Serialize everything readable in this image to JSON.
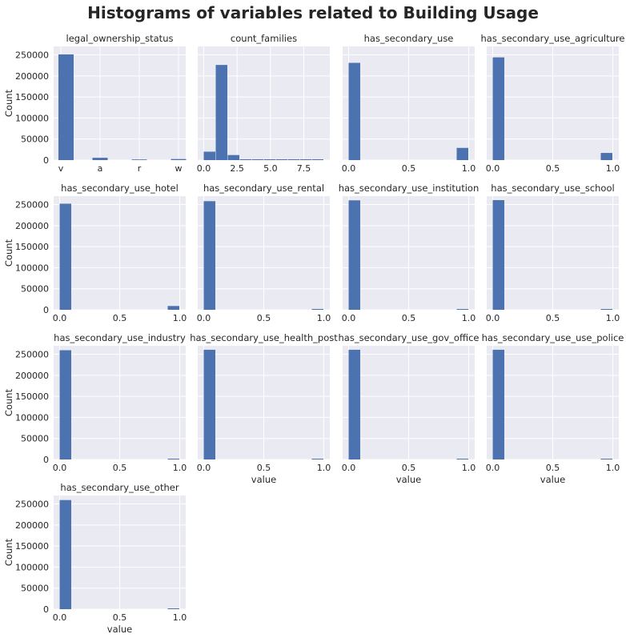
{
  "figure": {
    "title": "Histograms of variables related to Building Usage",
    "bar_color": "#4c72b0",
    "panel_bg": "#eaeaf2",
    "grid_color": "#ffffff"
  },
  "chart_data": [
    {
      "type": "bar",
      "title": "legal_ownership_status",
      "xlabel": "",
      "ylabel": "Count",
      "categorical": true,
      "categories": [
        "v",
        "a",
        "r",
        "w"
      ],
      "values": [
        251000,
        5500,
        1500,
        2500
      ],
      "ylim": [
        0,
        270000
      ],
      "yticks": [
        0,
        50000,
        100000,
        150000,
        200000,
        250000
      ]
    },
    {
      "type": "bar",
      "title": "count_families",
      "xlabel": "",
      "ylabel": "",
      "xlim": [
        -0.45,
        9.45
      ],
      "xticks": [
        0,
        2.5,
        5,
        7.5
      ],
      "xticklabels": [
        "0.0",
        "2.5",
        "5.0",
        "7.5"
      ],
      "bin_edges": [
        0,
        0.9,
        1.8,
        2.7,
        3.6,
        4.5,
        5.4,
        6.3,
        7.2,
        8.1,
        9.0
      ],
      "values": [
        20000,
        226000,
        12000,
        1500,
        400,
        100,
        50,
        20,
        10,
        5
      ],
      "ylim": [
        0,
        270000
      ]
    },
    {
      "type": "bar",
      "title": "has_secondary_use",
      "xlabel": "",
      "ylabel": "",
      "xlim": [
        -0.05,
        1.05
      ],
      "xticks": [
        0,
        0.5,
        1
      ],
      "xticklabels": [
        "0.0",
        "0.5",
        "1.0"
      ],
      "bin_edges": [
        0,
        0.1,
        0.2,
        0.3,
        0.4,
        0.5,
        0.6,
        0.7,
        0.8,
        0.9,
        1.0
      ],
      "values": [
        231000,
        0,
        0,
        0,
        0,
        0,
        0,
        0,
        0,
        29000
      ],
      "ylim": [
        0,
        270000
      ]
    },
    {
      "type": "bar",
      "title": "has_secondary_use_agriculture",
      "xlabel": "",
      "ylabel": "",
      "xlim": [
        -0.05,
        1.05
      ],
      "xticks": [
        0,
        0.5,
        1
      ],
      "xticklabels": [
        "0.0",
        "0.5",
        "1.0"
      ],
      "bin_edges": [
        0,
        0.1,
        0.2,
        0.3,
        0.4,
        0.5,
        0.6,
        0.7,
        0.8,
        0.9,
        1.0
      ],
      "values": [
        244000,
        0,
        0,
        0,
        0,
        0,
        0,
        0,
        0,
        17000
      ],
      "ylim": [
        0,
        270000
      ]
    },
    {
      "type": "bar",
      "title": "has_secondary_use_hotel",
      "xlabel": "",
      "ylabel": "Count",
      "xlim": [
        -0.05,
        1.05
      ],
      "xticks": [
        0,
        0.5,
        1
      ],
      "xticklabels": [
        "0.0",
        "0.5",
        "1.0"
      ],
      "bin_edges": [
        0,
        0.1,
        0.2,
        0.3,
        0.4,
        0.5,
        0.6,
        0.7,
        0.8,
        0.9,
        1.0
      ],
      "values": [
        252000,
        0,
        0,
        0,
        0,
        0,
        0,
        0,
        0,
        9000
      ],
      "ylim": [
        0,
        270000
      ],
      "yticks": [
        0,
        50000,
        100000,
        150000,
        200000,
        250000
      ]
    },
    {
      "type": "bar",
      "title": "has_secondary_use_rental",
      "xlabel": "",
      "ylabel": "",
      "xlim": [
        -0.05,
        1.05
      ],
      "xticks": [
        0,
        0.5,
        1
      ],
      "xticklabels": [
        "0.0",
        "0.5",
        "1.0"
      ],
      "bin_edges": [
        0,
        0.1,
        0.2,
        0.3,
        0.4,
        0.5,
        0.6,
        0.7,
        0.8,
        0.9,
        1.0
      ],
      "values": [
        258000,
        0,
        0,
        0,
        0,
        0,
        0,
        0,
        0,
        2000
      ],
      "ylim": [
        0,
        270000
      ]
    },
    {
      "type": "bar",
      "title": "has_secondary_use_institution",
      "xlabel": "",
      "ylabel": "",
      "xlim": [
        -0.05,
        1.05
      ],
      "xticks": [
        0,
        0.5,
        1
      ],
      "xticklabels": [
        "0.0",
        "0.5",
        "1.0"
      ],
      "bin_edges": [
        0,
        0.1,
        0.2,
        0.3,
        0.4,
        0.5,
        0.6,
        0.7,
        0.8,
        0.9,
        1.0
      ],
      "values": [
        260000,
        0,
        0,
        0,
        0,
        0,
        0,
        0,
        0,
        250
      ],
      "ylim": [
        0,
        270000
      ]
    },
    {
      "type": "bar",
      "title": "has_secondary_use_school",
      "xlabel": "",
      "ylabel": "",
      "xlim": [
        -0.05,
        1.05
      ],
      "xticks": [
        0,
        0.5,
        1
      ],
      "xticklabels": [
        "0.0",
        "0.5",
        "1.0"
      ],
      "bin_edges": [
        0,
        0.1,
        0.2,
        0.3,
        0.4,
        0.5,
        0.6,
        0.7,
        0.8,
        0.9,
        1.0
      ],
      "values": [
        260500,
        0,
        0,
        0,
        0,
        0,
        0,
        0,
        0,
        100
      ],
      "ylim": [
        0,
        270000
      ]
    },
    {
      "type": "bar",
      "title": "has_secondary_use_industry",
      "xlabel": "",
      "ylabel": "Count",
      "xlim": [
        -0.05,
        1.05
      ],
      "xticks": [
        0,
        0.5,
        1
      ],
      "xticklabels": [
        "0.0",
        "0.5",
        "1.0"
      ],
      "bin_edges": [
        0,
        0.1,
        0.2,
        0.3,
        0.4,
        0.5,
        0.6,
        0.7,
        0.8,
        0.9,
        1.0
      ],
      "values": [
        259500,
        0,
        0,
        0,
        0,
        0,
        0,
        0,
        0,
        1000
      ],
      "ylim": [
        0,
        270000
      ],
      "yticks": [
        0,
        50000,
        100000,
        150000,
        200000,
        250000
      ]
    },
    {
      "type": "bar",
      "title": "has_secondary_use_health_post",
      "xlabel": "value",
      "ylabel": "",
      "xlim": [
        -0.05,
        1.05
      ],
      "xticks": [
        0,
        0.5,
        1
      ],
      "xticklabels": [
        "0.0",
        "0.5",
        "1.0"
      ],
      "bin_edges": [
        0,
        0.1,
        0.2,
        0.3,
        0.4,
        0.5,
        0.6,
        0.7,
        0.8,
        0.9,
        1.0
      ],
      "values": [
        260600,
        0,
        0,
        0,
        0,
        0,
        0,
        0,
        0,
        50
      ],
      "ylim": [
        0,
        270000
      ]
    },
    {
      "type": "bar",
      "title": "has_secondary_use_gov_office",
      "xlabel": "value",
      "ylabel": "",
      "xlim": [
        -0.05,
        1.05
      ],
      "xticks": [
        0,
        0.5,
        1
      ],
      "xticklabels": [
        "0.0",
        "0.5",
        "1.0"
      ],
      "bin_edges": [
        0,
        0.1,
        0.2,
        0.3,
        0.4,
        0.5,
        0.6,
        0.7,
        0.8,
        0.9,
        1.0
      ],
      "values": [
        260600,
        0,
        0,
        0,
        0,
        0,
        0,
        0,
        0,
        40
      ],
      "ylim": [
        0,
        270000
      ]
    },
    {
      "type": "bar",
      "title": "has_secondary_use_use_police",
      "xlabel": "value",
      "ylabel": "",
      "xlim": [
        -0.05,
        1.05
      ],
      "xticks": [
        0,
        0.5,
        1
      ],
      "xticklabels": [
        "0.0",
        "0.5",
        "1.0"
      ],
      "bin_edges": [
        0,
        0.1,
        0.2,
        0.3,
        0.4,
        0.5,
        0.6,
        0.7,
        0.8,
        0.9,
        1.0
      ],
      "values": [
        260600,
        0,
        0,
        0,
        0,
        0,
        0,
        0,
        0,
        20
      ],
      "ylim": [
        0,
        270000
      ]
    },
    {
      "type": "bar",
      "title": "has_secondary_use_other",
      "xlabel": "value",
      "ylabel": "Count",
      "xlim": [
        -0.05,
        1.05
      ],
      "xticks": [
        0,
        0.5,
        1
      ],
      "xticklabels": [
        "0.0",
        "0.5",
        "1.0"
      ],
      "bin_edges": [
        0,
        0.1,
        0.2,
        0.3,
        0.4,
        0.5,
        0.6,
        0.7,
        0.8,
        0.9,
        1.0
      ],
      "values": [
        259200,
        0,
        0,
        0,
        0,
        0,
        0,
        0,
        0,
        1300
      ],
      "ylim": [
        0,
        270000
      ],
      "yticks": [
        0,
        50000,
        100000,
        150000,
        200000,
        250000
      ]
    }
  ]
}
